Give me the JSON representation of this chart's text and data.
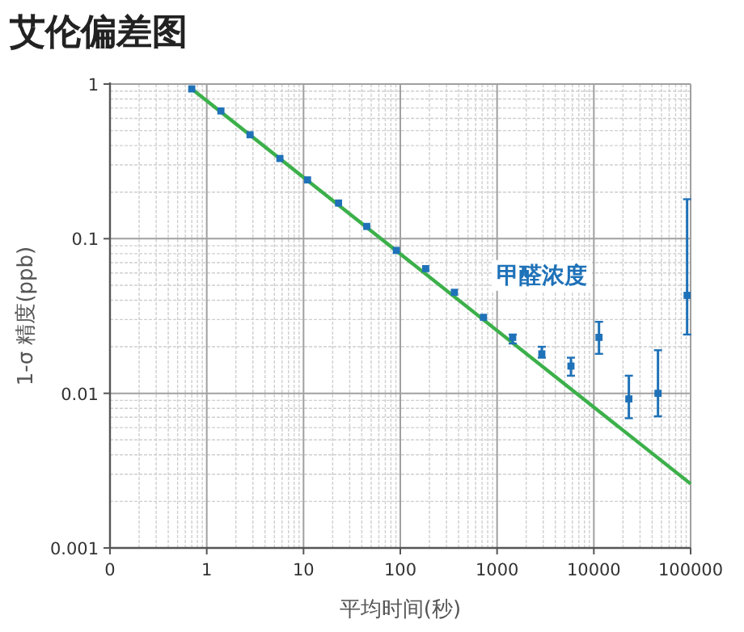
{
  "chart_data": {
    "type": "scatter",
    "title": "艾伦偏差图",
    "xlabel": "平均时间(秒)",
    "ylabel": "1-σ 精度(ppb)",
    "log": "xy",
    "grid": true,
    "xlim": [
      0.1,
      100000
    ],
    "ylim": [
      0.001,
      1
    ],
    "xticks": [
      {
        "value": 0.1,
        "label": "0"
      },
      1,
      10,
      100,
      1000,
      10000,
      100000
    ],
    "yticks": [
      0.001,
      0.01,
      0.1,
      1
    ],
    "series": [
      {
        "name": "甲醛浓度",
        "marker": "square",
        "color": "#1f72b8",
        "x": [
          0.7,
          1.4,
          2.8,
          5.7,
          11,
          23,
          45,
          91,
          183,
          362,
          724,
          1450,
          2900,
          5800,
          11300,
          23000,
          46000,
          92000
        ],
        "values": [
          0.93,
          0.67,
          0.47,
          0.33,
          0.24,
          0.17,
          0.12,
          0.084,
          0.064,
          0.045,
          0.031,
          0.023,
          0.018,
          0.015,
          0.023,
          0.0092,
          0.01,
          0.043
        ],
        "errors": [
          null,
          null,
          null,
          null,
          null,
          null,
          null,
          null,
          null,
          null,
          null,
          [
            0.021,
            0.024
          ],
          [
            0.017,
            0.02
          ],
          [
            0.013,
            0.017
          ],
          [
            0.018,
            0.029
          ],
          [
            0.0069,
            0.013
          ],
          [
            0.0071,
            0.019
          ],
          [
            0.024,
            0.18
          ]
        ]
      },
      {
        "type": "line",
        "color": "#3cb04a",
        "x": [
          0.7,
          100000
        ],
        "values": [
          0.93,
          0.0026
        ]
      }
    ]
  }
}
